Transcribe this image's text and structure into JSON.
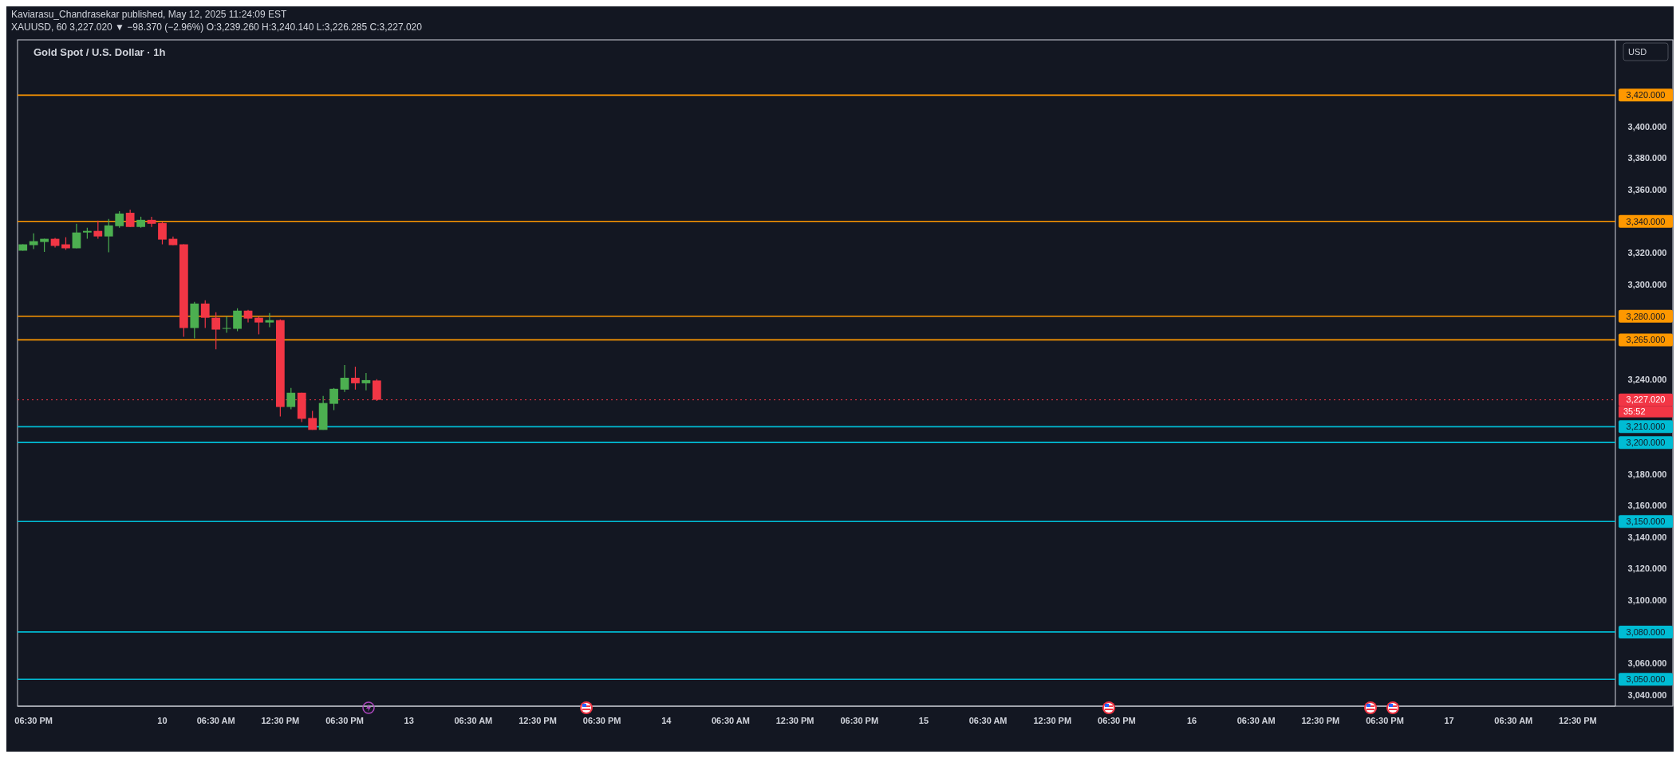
{
  "chart_data": {
    "type": "candlestick",
    "title": "Gold Spot / U.S. Dollar · 1h",
    "subtitle": "XAUUSD, 60  3,227.020 ▼ −98.370 (−2.96%)  O:3,239.260 H:3,240.140 L:3,226.285 C:3,227.020",
    "annotations": [
      "Kaviarasu_Chandrasekar published, May 12, 2025 11:24:09 EST",
      "USD",
      "35:52"
    ],
    "categories": [
      null,
      "06:30 PM",
      null,
      null,
      null,
      null,
      null,
      null,
      null,
      null,
      null,
      null,
      null,
      "10",
      null,
      null,
      null,
      null,
      "06:30 AM",
      null,
      null,
      null,
      null,
      null,
      "12:30 PM",
      null,
      null,
      null,
      null,
      null,
      "06:30 PM",
      null,
      null,
      null,
      null,
      null,
      "13",
      null,
      null,
      null,
      null,
      null,
      "06:30 AM",
      null,
      null,
      null,
      null,
      null,
      "12:30 PM",
      null,
      null,
      null,
      null,
      null,
      "06:30 PM",
      null,
      null,
      null,
      null,
      null,
      "14",
      null,
      null,
      null,
      null,
      null,
      "06:30 AM",
      null,
      null,
      null,
      null,
      null,
      "12:30 PM",
      null,
      null,
      null,
      null,
      null,
      "06:30 PM",
      null,
      null,
      null,
      null,
      null,
      "15",
      null,
      null,
      null,
      null,
      null,
      "06:30 AM",
      null,
      null,
      null,
      null,
      null,
      "12:30 PM",
      null,
      null,
      null,
      null,
      null,
      "06:30 PM",
      null,
      null,
      null,
      null,
      null,
      null,
      "16",
      null,
      null,
      null,
      null,
      null,
      "06:30 AM",
      null,
      null,
      null,
      null,
      null,
      "12:30 PM",
      null,
      null,
      null,
      null,
      null,
      "06:30 PM",
      null,
      null,
      null,
      null,
      null,
      "17",
      null,
      null,
      null,
      null,
      null,
      "06:30 AM",
      null,
      null,
      null,
      null,
      null,
      "12:30 PM",
      null,
      null,
      null
    ],
    "ohlc": [
      [
        3321.5,
        3325.5,
        3321.5,
        3325.5
      ],
      [
        3325,
        3332.5,
        3322.5,
        3327.5
      ],
      [
        3327,
        3329,
        3320.7,
        3329
      ],
      [
        3329,
        3329.5,
        3323.5,
        3324.5
      ],
      [
        3325.5,
        3330,
        3322,
        3323
      ],
      [
        3323,
        3338.5,
        3323,
        3333
      ],
      [
        3333,
        3336,
        3329,
        3334
      ],
      [
        3334,
        3340.5,
        3329,
        3330.5
      ],
      [
        3330.5,
        3341.5,
        3320.5,
        3337.5
      ],
      [
        3337,
        3346.5,
        3336,
        3345
      ],
      [
        3345.5,
        3347.5,
        3336.5,
        3336.5
      ],
      [
        3336.5,
        3343,
        3336,
        3341
      ],
      [
        3341,
        3343,
        3336.5,
        3338.5
      ],
      [
        3339,
        3340,
        3325.5,
        3328.5
      ],
      [
        3329,
        3330.5,
        3325,
        3325
      ],
      [
        3325.5,
        3325.5,
        3267,
        3272.5
      ],
      [
        3272.5,
        3289,
        3266,
        3288
      ],
      [
        3288,
        3290,
        3272.5,
        3279
      ],
      [
        3279,
        3282.5,
        3259,
        3271.5
      ],
      [
        3272,
        3280,
        3269.5,
        3272.5
      ],
      [
        3272,
        3285,
        3270.5,
        3283.5
      ],
      [
        3283.5,
        3284,
        3276,
        3278.5
      ],
      [
        3279,
        3280,
        3268.5,
        3276
      ],
      [
        3276,
        3282,
        3273,
        3277.5
      ],
      [
        3277.5,
        3278,
        3216.5,
        3222.5
      ],
      [
        3222.5,
        3234.5,
        3221,
        3231.5
      ],
      [
        3231.5,
        3231.5,
        3213,
        3215
      ],
      [
        3215.5,
        3220,
        3208,
        3208
      ],
      [
        3208,
        3229.5,
        3208,
        3225
      ],
      [
        3224.5,
        3234.5,
        3220.5,
        3234
      ],
      [
        3233.5,
        3249,
        3232,
        3241
      ],
      [
        3241,
        3248,
        3233.5,
        3237.5
      ],
      [
        3237.5,
        3244,
        3233,
        3239.5
      ],
      [
        3239.26,
        3240.14,
        3226.285,
        3227.02
      ],
      null,
      null,
      null,
      null,
      null,
      null,
      null,
      null,
      null,
      null,
      null,
      null,
      null,
      null,
      null,
      null,
      null,
      null,
      null,
      null,
      null,
      null,
      null,
      null,
      null,
      null,
      null,
      null,
      null,
      null,
      null,
      null,
      null,
      null,
      null,
      null,
      null,
      null,
      null,
      null,
      null,
      null,
      null,
      null,
      null,
      null,
      null,
      null,
      null,
      null,
      null,
      null,
      null,
      null,
      null,
      null,
      null,
      null,
      null,
      null,
      null,
      null,
      null,
      null,
      null,
      null,
      null,
      null,
      null,
      null,
      null,
      null,
      null,
      null,
      null,
      null,
      null,
      null,
      null,
      null,
      null,
      null,
      null,
      null,
      null,
      null,
      null,
      null,
      null,
      null,
      null,
      null,
      null,
      null,
      null,
      null,
      null,
      null,
      null,
      null,
      null,
      null,
      null,
      null,
      null,
      null,
      null,
      null,
      null,
      null,
      null,
      null,
      null,
      null,
      null
    ],
    "ylim": [
      3033,
      3455
    ],
    "yticks": [
      {
        "value": 3040,
        "label": "3,040.000"
      },
      {
        "value": 3060,
        "label": "3,060.000"
      },
      {
        "value": 3100,
        "label": "3,100.000"
      },
      {
        "value": 3120,
        "label": "3,120.000"
      },
      {
        "value": 3140,
        "label": "3,140.000"
      },
      {
        "value": 3160,
        "label": "3,160.000"
      },
      {
        "value": 3180,
        "label": "3,180.000"
      },
      {
        "value": 3240,
        "label": "3,240.000"
      },
      {
        "value": 3300,
        "label": "3,300.000"
      },
      {
        "value": 3320,
        "label": "3,320.000"
      },
      {
        "value": 3360,
        "label": "3,360.000"
      },
      {
        "value": 3380,
        "label": "3,380.000"
      },
      {
        "value": 3400,
        "label": "3,400.000"
      }
    ],
    "ref_lines": [
      {
        "axis": "y",
        "value": 3420,
        "label": "3,420.000",
        "color": "#ff9800"
      },
      {
        "axis": "y",
        "value": 3340,
        "label": "3,340.000",
        "color": "#ff9800"
      },
      {
        "axis": "y",
        "value": 3280,
        "label": "3,280.000",
        "color": "#ff9800"
      },
      {
        "axis": "y",
        "value": 3265,
        "label": "3,265.000",
        "color": "#ff9800"
      },
      {
        "axis": "y",
        "value": 3227.02,
        "label": "3,227.020",
        "color": "#f23645",
        "line_style": "dotted"
      },
      {
        "axis": "y",
        "value": 3210,
        "label": "3,210.000",
        "color": "#00bcd4"
      },
      {
        "axis": "y",
        "value": 3200,
        "label": "3,200.000",
        "color": "#00bcd4"
      },
      {
        "axis": "y",
        "value": 3150,
        "label": "3,150.000",
        "color": "#00bcd4"
      },
      {
        "axis": "y",
        "value": 3080,
        "label": "3,080.000",
        "color": "#00bcd4"
      },
      {
        "axis": "y",
        "value": 3050,
        "label": "3,050.000",
        "color": "#00bcd4"
      }
    ],
    "grid": false
  }
}
